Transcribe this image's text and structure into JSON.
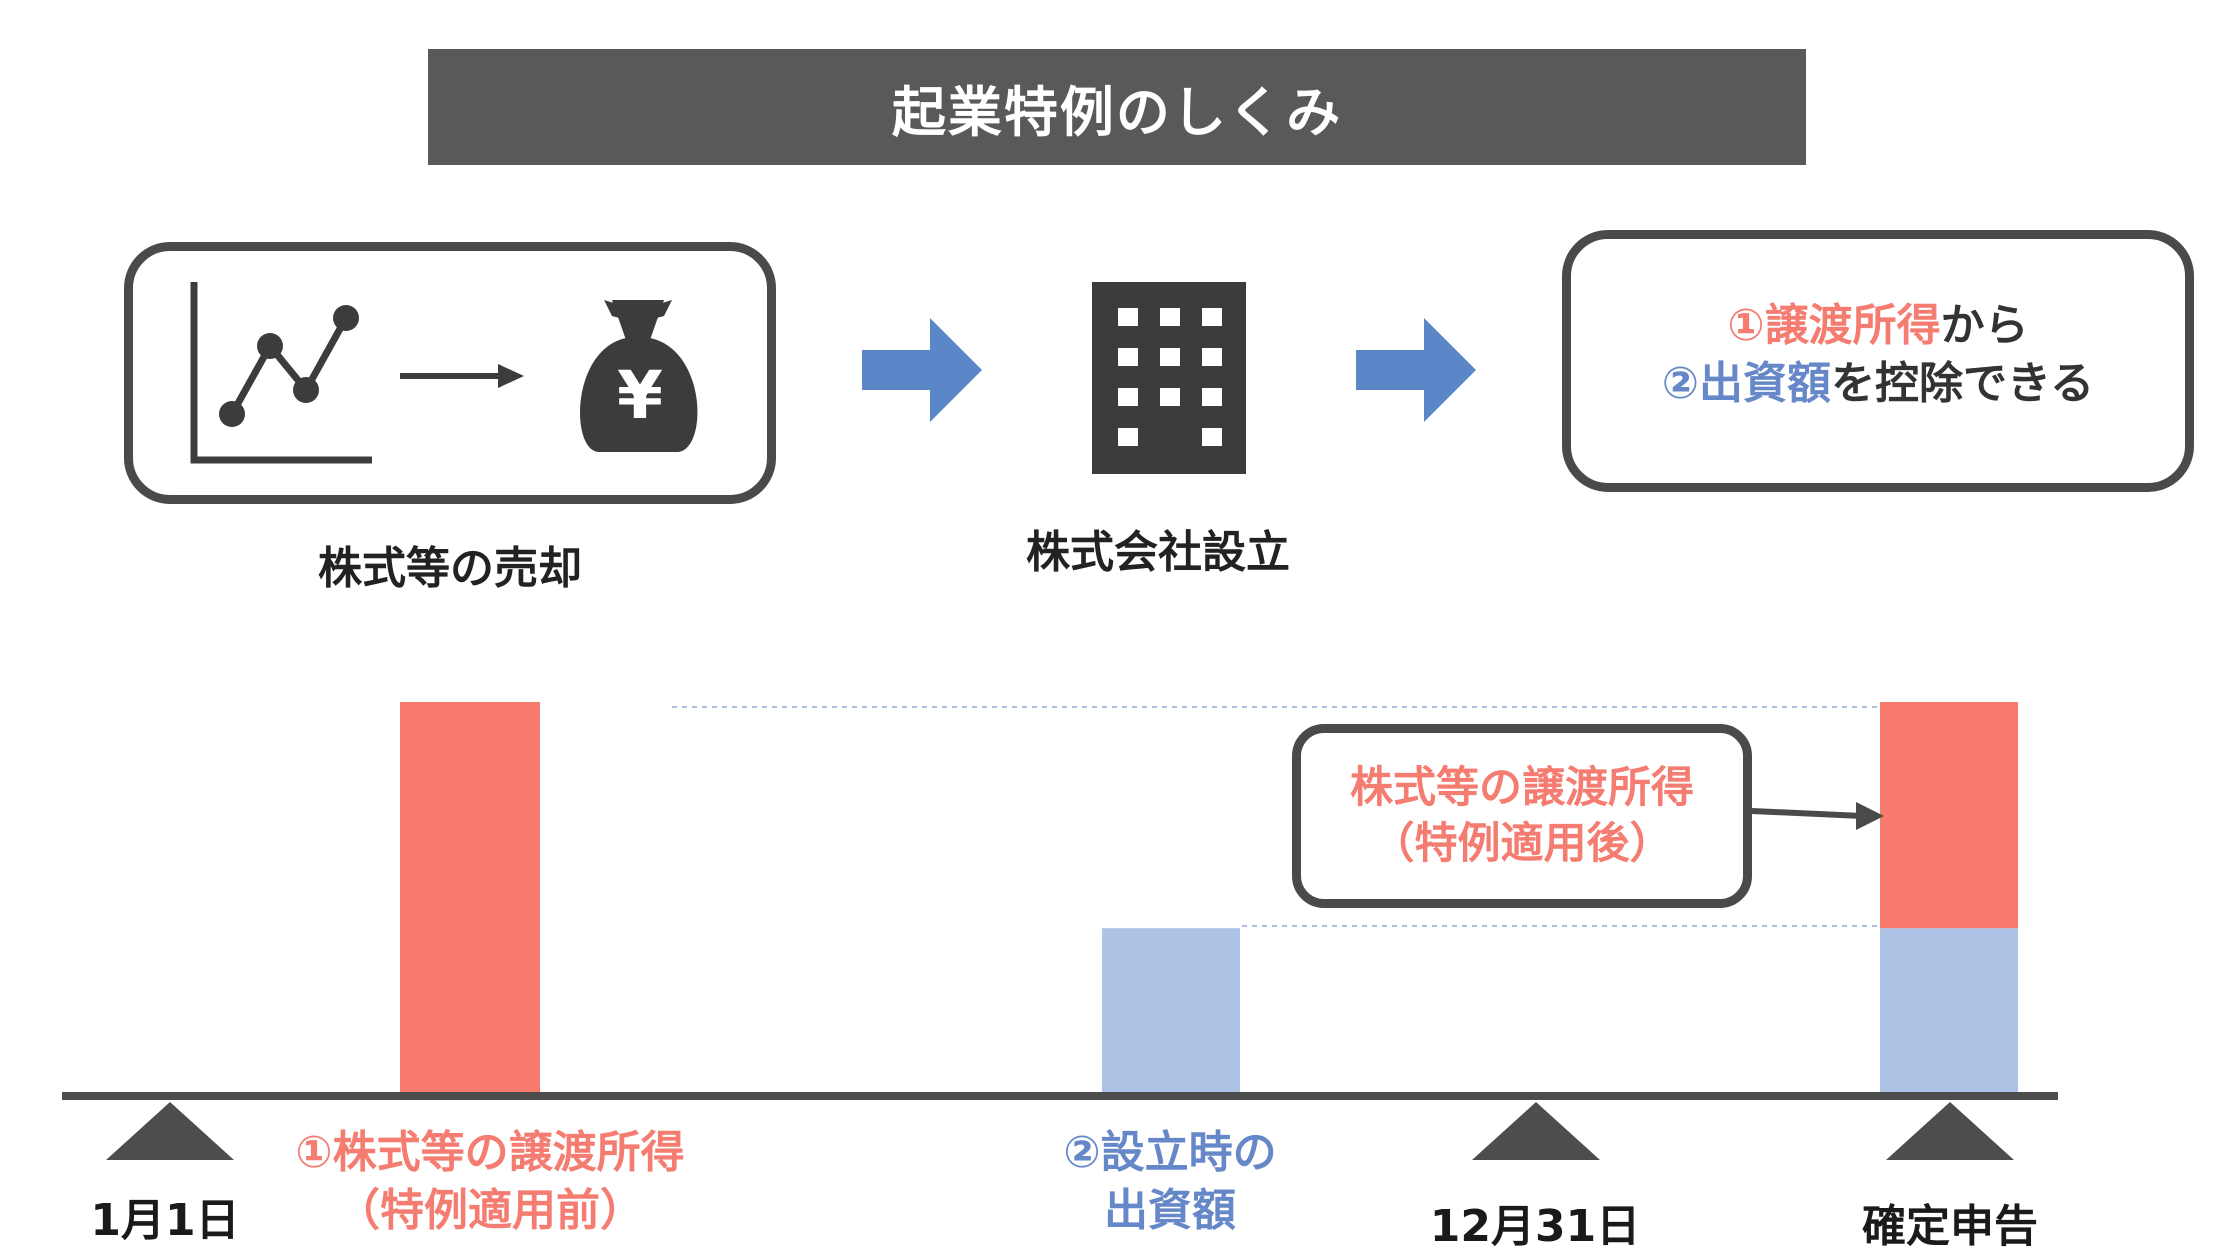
{
  "title": "起業特例のしくみ",
  "steps": {
    "sale_label": "株式等の売却",
    "company_label": "株式会社設立",
    "yen_symbol": "¥"
  },
  "result": {
    "line1_highlight": "①譲渡所得",
    "line1_rest": "から",
    "line2_highlight": "②出資額",
    "line2_rest": "を控除できる"
  },
  "callout": {
    "line1": "株式等の譲渡所得",
    "line2": "（特例適用後）"
  },
  "timeline": {
    "jan1": "1月1日",
    "dec31": "12月31日",
    "filing": "確定申告"
  },
  "bars": {
    "gain_label_line1": "①株式等の譲渡所得",
    "gain_label_line2": "（特例適用前）",
    "investment_label_line1": "②設立時の",
    "investment_label_line2": "出資額",
    "gain_value": 1.0,
    "investment_value": 0.42,
    "after_total_value": 1.0
  },
  "colors": {
    "title_bg": "#595959",
    "box_border": "#4a4a4a",
    "arrow_blue": "#5b87c9",
    "bar_red": "#f77a6d",
    "bar_blue": "#adc3e6",
    "text_red": "#f47c70",
    "text_blue": "#6688c8",
    "axis": "#4d4d4d",
    "icon_dark": "#3c3c3c"
  },
  "icons": {
    "chart": "line-chart-icon",
    "money": "money-bag-icon",
    "building": "building-icon"
  }
}
